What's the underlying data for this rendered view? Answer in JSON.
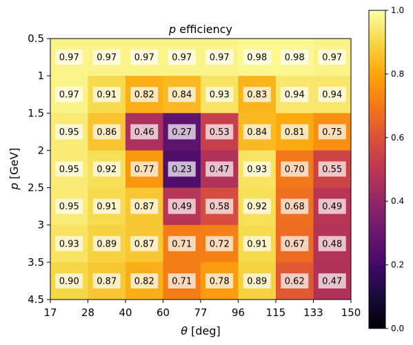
{
  "chart_data": {
    "type": "heatmap",
    "title_prefix": "p",
    "title_suffix": " efficiency",
    "xlabel_prefix": "θ",
    "xlabel_suffix": " [deg]",
    "ylabel_prefix": "p",
    "ylabel_suffix": " [GeV]",
    "x_edges": [
      "17",
      "28",
      "40",
      "60",
      "77",
      "96",
      "115",
      "133",
      "150"
    ],
    "y_edges": [
      "0.5",
      "1",
      "1.5",
      "2",
      "2.5",
      "3",
      "3.5",
      "4.5"
    ],
    "values": [
      [
        0.97,
        0.97,
        0.97,
        0.97,
        0.97,
        0.98,
        0.98,
        0.97
      ],
      [
        0.97,
        0.91,
        0.82,
        0.84,
        0.93,
        0.83,
        0.94,
        0.94
      ],
      [
        0.95,
        0.86,
        0.46,
        0.27,
        0.53,
        0.84,
        0.81,
        0.75
      ],
      [
        0.95,
        0.92,
        0.77,
        0.23,
        0.47,
        0.93,
        0.7,
        0.55
      ],
      [
        0.95,
        0.91,
        0.87,
        0.49,
        0.58,
        0.92,
        0.68,
        0.49
      ],
      [
        0.93,
        0.89,
        0.87,
        0.71,
        0.72,
        0.91,
        0.67,
        0.48
      ],
      [
        0.9,
        0.87,
        0.82,
        0.71,
        0.78,
        0.89,
        0.62,
        0.47
      ]
    ],
    "colorbar": {
      "colormap": "inferno",
      "range": [
        0.0,
        1.0
      ],
      "ticks": [
        "0.0",
        "0.2",
        "0.4",
        "0.6",
        "0.8",
        "1.0"
      ]
    }
  }
}
